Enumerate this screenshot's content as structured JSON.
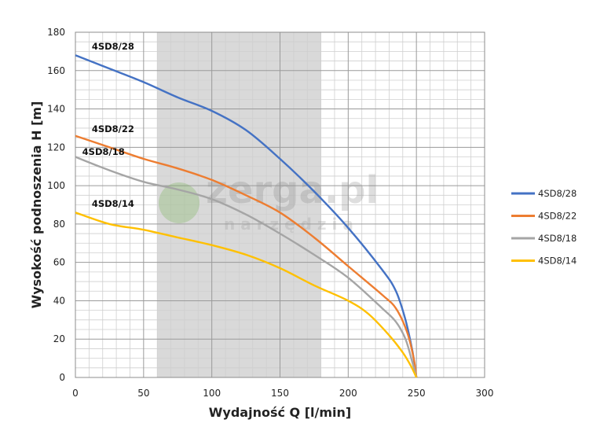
{
  "chart_data": {
    "type": "line",
    "xlabel": "Wydajność Q [l/min]",
    "ylabel": "Wysokość podnoszenia H [m]",
    "xlim": [
      0,
      300
    ],
    "ylim": [
      0,
      180
    ],
    "x_ticks": [
      "0",
      "50",
      "100",
      "150",
      "200",
      "250",
      "300"
    ],
    "y_ticks": [
      "0",
      "20",
      "40",
      "60",
      "80",
      "100",
      "120",
      "140",
      "160",
      "180"
    ],
    "grid": true,
    "legend_position": "right",
    "highlight_range": [
      60,
      180
    ],
    "series": [
      {
        "name": "4SD8/28",
        "color": "#4472c4",
        "label_at": [
          12,
          171
        ],
        "points": [
          [
            0,
            168
          ],
          [
            25,
            161
          ],
          [
            50,
            154
          ],
          [
            75,
            146
          ],
          [
            100,
            139
          ],
          [
            125,
            129
          ],
          [
            150,
            114
          ],
          [
            175,
            97
          ],
          [
            200,
            78
          ],
          [
            225,
            56
          ],
          [
            235,
            45
          ],
          [
            242,
            30
          ],
          [
            247,
            14
          ],
          [
            250,
            0
          ]
        ]
      },
      {
        "name": "4SD8/22",
        "color": "#ed7d31",
        "label_at": [
          12,
          128
        ],
        "points": [
          [
            0,
            126
          ],
          [
            25,
            120
          ],
          [
            50,
            114
          ],
          [
            75,
            109
          ],
          [
            100,
            103
          ],
          [
            125,
            95
          ],
          [
            150,
            86
          ],
          [
            175,
            73
          ],
          [
            200,
            58
          ],
          [
            225,
            43
          ],
          [
            235,
            36
          ],
          [
            243,
            24
          ],
          [
            248,
            10
          ],
          [
            250,
            0
          ]
        ]
      },
      {
        "name": "4SD8/18",
        "color": "#a5a5a5",
        "label_at": [
          5,
          116
        ],
        "points": [
          [
            0,
            115
          ],
          [
            25,
            108
          ],
          [
            50,
            102
          ],
          [
            75,
            98
          ],
          [
            100,
            93
          ],
          [
            125,
            85
          ],
          [
            150,
            75
          ],
          [
            175,
            64
          ],
          [
            200,
            52
          ],
          [
            225,
            36
          ],
          [
            235,
            29
          ],
          [
            242,
            20
          ],
          [
            247,
            8
          ],
          [
            250,
            0
          ]
        ]
      },
      {
        "name": "4SD8/14",
        "color": "#ffc000",
        "label_at": [
          12,
          89
        ],
        "points": [
          [
            0,
            86
          ],
          [
            25,
            80
          ],
          [
            50,
            77
          ],
          [
            75,
            73
          ],
          [
            100,
            69
          ],
          [
            125,
            64
          ],
          [
            150,
            57
          ],
          [
            175,
            48
          ],
          [
            200,
            40
          ],
          [
            215,
            33
          ],
          [
            230,
            22
          ],
          [
            240,
            13
          ],
          [
            246,
            6
          ],
          [
            250,
            0
          ]
        ]
      }
    ]
  },
  "watermark": {
    "brand": "zerga.pl",
    "sub": "n a r z ę d z i a"
  }
}
